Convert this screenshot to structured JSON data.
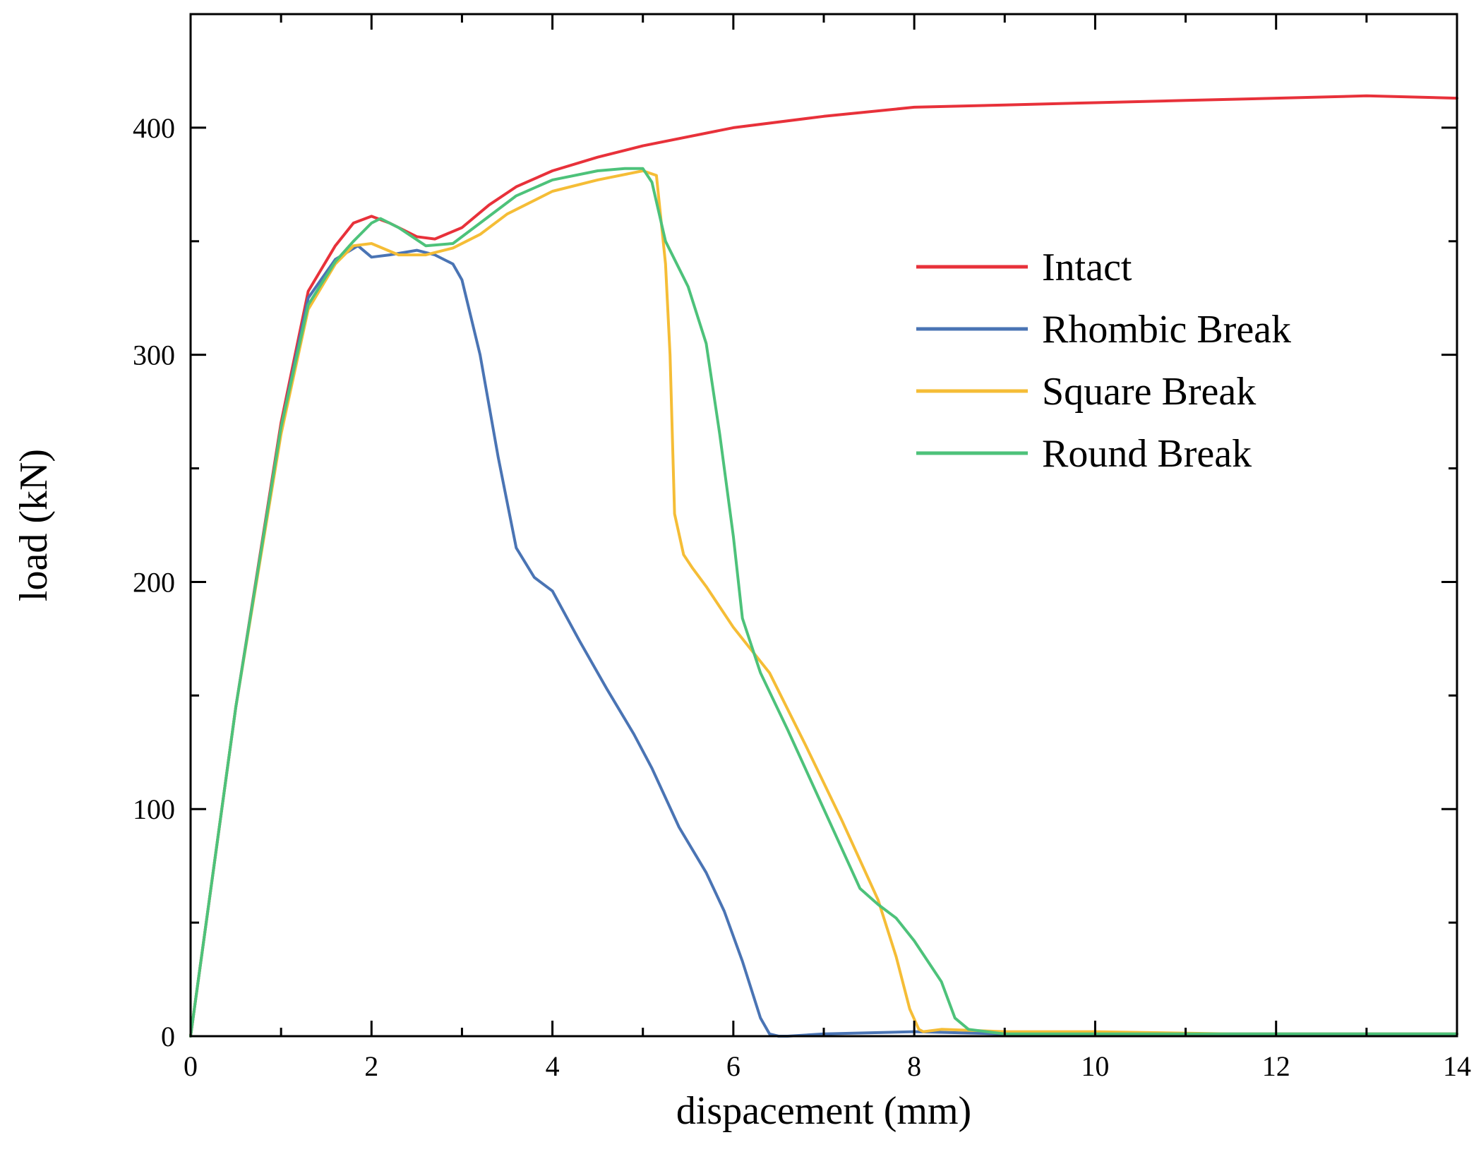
{
  "chart_data": {
    "type": "line",
    "title": "",
    "xlabel": "dispacement (mm)",
    "ylabel": "load  (kN)",
    "xlim": [
      0,
      14
    ],
    "ylim": [
      0,
      450
    ],
    "xticks": [
      0,
      2,
      4,
      6,
      8,
      10,
      12,
      14
    ],
    "yticks": [
      0,
      100,
      200,
      300,
      400
    ],
    "xtick_labels": [
      "0",
      "2",
      "4",
      "6",
      "8",
      "10",
      "12",
      "14"
    ],
    "ytick_labels": [
      "0",
      "100",
      "200",
      "300",
      "400"
    ],
    "grid": false,
    "legend": "upper-right-inside",
    "series": [
      {
        "name": "Intact",
        "color": "#e8313a",
        "x": [
          0,
          0.5,
          1.0,
          1.3,
          1.6,
          1.8,
          2.0,
          2.2,
          2.5,
          2.7,
          3.0,
          3.3,
          3.6,
          4.0,
          4.5,
          5.0,
          6.0,
          7.0,
          8.0,
          9.0,
          10.0,
          11.0,
          12.0,
          13.0,
          14.0
        ],
        "y": [
          0,
          145,
          270,
          328,
          348,
          358,
          361,
          358,
          352,
          351,
          356,
          366,
          374,
          381,
          387,
          392,
          400,
          405,
          409,
          410,
          411,
          412,
          413,
          414,
          413
        ]
      },
      {
        "name": "Rhombic Break",
        "color": "#4a74b4",
        "x": [
          0,
          0.5,
          1.0,
          1.3,
          1.6,
          1.85,
          2.0,
          2.2,
          2.5,
          2.7,
          2.9,
          3.0,
          3.2,
          3.4,
          3.6,
          3.8,
          4.0,
          4.3,
          4.6,
          4.9,
          5.1,
          5.4,
          5.7,
          5.9,
          6.1,
          6.3,
          6.4,
          6.5,
          6.6,
          7.0,
          8.0,
          9.0,
          10.0,
          12.0,
          14.0
        ],
        "y": [
          0,
          145,
          268,
          325,
          342,
          348,
          343,
          344,
          346,
          344,
          340,
          333,
          300,
          255,
          215,
          202,
          196,
          174,
          153,
          133,
          118,
          92,
          72,
          55,
          33,
          8,
          1,
          0,
          0,
          1,
          2,
          1,
          1,
          1,
          1
        ]
      },
      {
        "name": "Square Break",
        "color": "#f5bd36",
        "x": [
          0,
          0.5,
          1.0,
          1.3,
          1.6,
          1.8,
          2.0,
          2.3,
          2.6,
          2.9,
          3.2,
          3.5,
          4.0,
          4.5,
          5.0,
          5.15,
          5.25,
          5.3,
          5.35,
          5.45,
          5.55,
          5.7,
          6.0,
          6.4,
          6.8,
          7.2,
          7.6,
          7.8,
          7.95,
          8.05,
          8.1,
          8.3,
          9.0,
          10.0,
          11.5,
          12.0,
          14.0
        ],
        "y": [
          0,
          145,
          265,
          320,
          340,
          348,
          349,
          344,
          344,
          347,
          353,
          362,
          372,
          377,
          381,
          379,
          340,
          300,
          230,
          212,
          206,
          198,
          180,
          160,
          128,
          95,
          60,
          35,
          12,
          3,
          2,
          3,
          2,
          2,
          1,
          1,
          1
        ]
      },
      {
        "name": "Round Break",
        "color": "#4dc27a",
        "x": [
          0,
          0.5,
          1.0,
          1.3,
          1.6,
          1.8,
          2.0,
          2.1,
          2.3,
          2.6,
          2.9,
          3.2,
          3.6,
          4.0,
          4.5,
          4.8,
          5.0,
          5.1,
          5.25,
          5.5,
          5.7,
          5.85,
          6.0,
          6.1,
          6.3,
          6.6,
          7.0,
          7.4,
          7.6,
          7.8,
          8.0,
          8.2,
          8.3,
          8.45,
          8.6,
          9.0,
          10.0,
          12.0,
          14.0
        ],
        "y": [
          0,
          145,
          268,
          322,
          341,
          350,
          358,
          360,
          356,
          348,
          349,
          358,
          370,
          377,
          381,
          382,
          382,
          376,
          350,
          330,
          305,
          265,
          220,
          184,
          160,
          135,
          100,
          65,
          58,
          52,
          42,
          30,
          24,
          8,
          3,
          1,
          1,
          1,
          1
        ]
      }
    ]
  }
}
